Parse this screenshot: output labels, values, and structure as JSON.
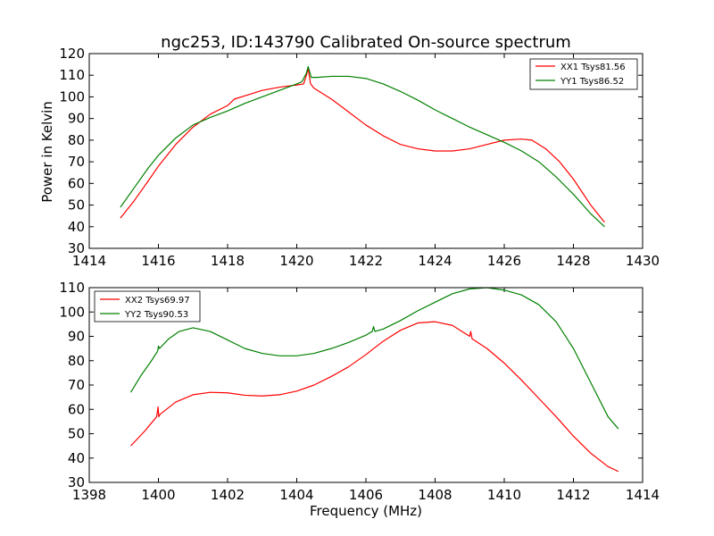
{
  "chart_data": [
    {
      "type": "line",
      "title": "ngc253, ID:143790 Calibrated On-source spectrum",
      "xlabel": "",
      "ylabel": "Power in Kelvin",
      "xlim": [
        1414,
        1430
      ],
      "ylim": [
        30,
        120
      ],
      "xticks": [
        1414,
        1416,
        1418,
        1420,
        1422,
        1424,
        1426,
        1428,
        1430
      ],
      "yticks": [
        30,
        40,
        50,
        60,
        70,
        80,
        90,
        100,
        110,
        120
      ],
      "legend_position": "top-right",
      "series": [
        {
          "name": "XX1 Tsys81.56",
          "color": "#ff0000",
          "x": [
            1414.9,
            1415.3,
            1415.7,
            1416.0,
            1416.5,
            1417.0,
            1417.5,
            1418.0,
            1418.2,
            1418.6,
            1419.0,
            1419.5,
            1420.0,
            1420.2,
            1420.28,
            1420.33,
            1420.4,
            1420.5,
            1421.0,
            1421.5,
            1422.0,
            1422.5,
            1423.0,
            1423.5,
            1424.0,
            1424.5,
            1425.0,
            1425.5,
            1426.0,
            1426.5,
            1426.8,
            1427.2,
            1427.6,
            1428.0,
            1428.5,
            1428.9
          ],
          "y": [
            44,
            52,
            61,
            68,
            78,
            86,
            92,
            96,
            99,
            101,
            103,
            104.5,
            105.5,
            106,
            110,
            113,
            106,
            104,
            99,
            93,
            87,
            82,
            78,
            76,
            75,
            75,
            76,
            78,
            80,
            80.5,
            80,
            76,
            70,
            62,
            50,
            42
          ]
        },
        {
          "name": "YY1 Tsys86.52",
          "color": "#008000",
          "x": [
            1414.9,
            1415.3,
            1415.7,
            1416.0,
            1416.5,
            1417.0,
            1417.5,
            1418.0,
            1418.5,
            1419.0,
            1419.5,
            1420.0,
            1420.15,
            1420.28,
            1420.33,
            1420.42,
            1420.6,
            1421.0,
            1421.5,
            1422.0,
            1422.5,
            1423.0,
            1423.5,
            1424.0,
            1424.5,
            1425.0,
            1425.5,
            1426.0,
            1426.5,
            1427.0,
            1427.5,
            1428.0,
            1428.5,
            1428.9
          ],
          "y": [
            49,
            58,
            67,
            73,
            81,
            87,
            90.5,
            93.5,
            97,
            100,
            103,
            106,
            107,
            111,
            114,
            109,
            109,
            109.5,
            109.5,
            108.5,
            106,
            102.5,
            98.5,
            94,
            90,
            86,
            82.5,
            79,
            75,
            70,
            63,
            55,
            46,
            40
          ]
        }
      ]
    },
    {
      "type": "line",
      "title": "",
      "xlabel": "Frequency (MHz)",
      "ylabel": "",
      "xlim": [
        1398,
        1414
      ],
      "ylim": [
        30,
        110
      ],
      "xticks": [
        1398,
        1400,
        1402,
        1404,
        1406,
        1408,
        1410,
        1412,
        1414
      ],
      "yticks": [
        30,
        40,
        50,
        60,
        70,
        80,
        90,
        100,
        110
      ],
      "legend_position": "top-left",
      "series": [
        {
          "name": "XX2 Tsys69.97",
          "color": "#ff0000",
          "x": [
            1399.2,
            1399.6,
            1399.95,
            1399.99,
            1400.01,
            1400.05,
            1400.5,
            1401.0,
            1401.5,
            1402.0,
            1402.5,
            1403.0,
            1403.5,
            1404.0,
            1404.5,
            1405.0,
            1405.5,
            1406.0,
            1406.5,
            1407.0,
            1407.5,
            1408.0,
            1408.5,
            1409.0,
            1409.03,
            1409.07,
            1409.5,
            1410.0,
            1410.5,
            1411.0,
            1411.5,
            1412.0,
            1412.5,
            1413.0,
            1413.3
          ],
          "y": [
            45,
            51,
            57,
            61,
            57,
            58,
            63,
            66,
            67,
            66.8,
            65.8,
            65.5,
            66,
            67.5,
            70,
            73.5,
            77.5,
            82.5,
            88,
            92.5,
            95.5,
            96,
            94.5,
            90,
            92,
            89,
            85,
            79,
            72,
            64.5,
            57,
            49,
            42,
            36.5,
            34.5
          ]
        },
        {
          "name": "YY2 Tsys90.53",
          "color": "#008000",
          "x": [
            1399.2,
            1399.5,
            1399.8,
            1399.98,
            1400.0,
            1400.03,
            1400.3,
            1400.6,
            1401.0,
            1401.5,
            1402.0,
            1402.5,
            1403.0,
            1403.5,
            1404.0,
            1404.5,
            1405.0,
            1405.5,
            1406.0,
            1406.18,
            1406.22,
            1406.26,
            1406.5,
            1407.0,
            1407.5,
            1408.0,
            1408.5,
            1409.0,
            1409.5,
            1410.0,
            1410.5,
            1411.0,
            1411.5,
            1412.0,
            1412.5,
            1413.0,
            1413.3
          ],
          "y": [
            67,
            74,
            80,
            84,
            86,
            85,
            89,
            92,
            93.5,
            92,
            88.5,
            85,
            83,
            82,
            82,
            83,
            85,
            87.5,
            90.5,
            92,
            94,
            92,
            93,
            96.5,
            100.5,
            104,
            107.5,
            109.5,
            110,
            109,
            107,
            103,
            96,
            85,
            71,
            57,
            52
          ]
        }
      ]
    }
  ]
}
